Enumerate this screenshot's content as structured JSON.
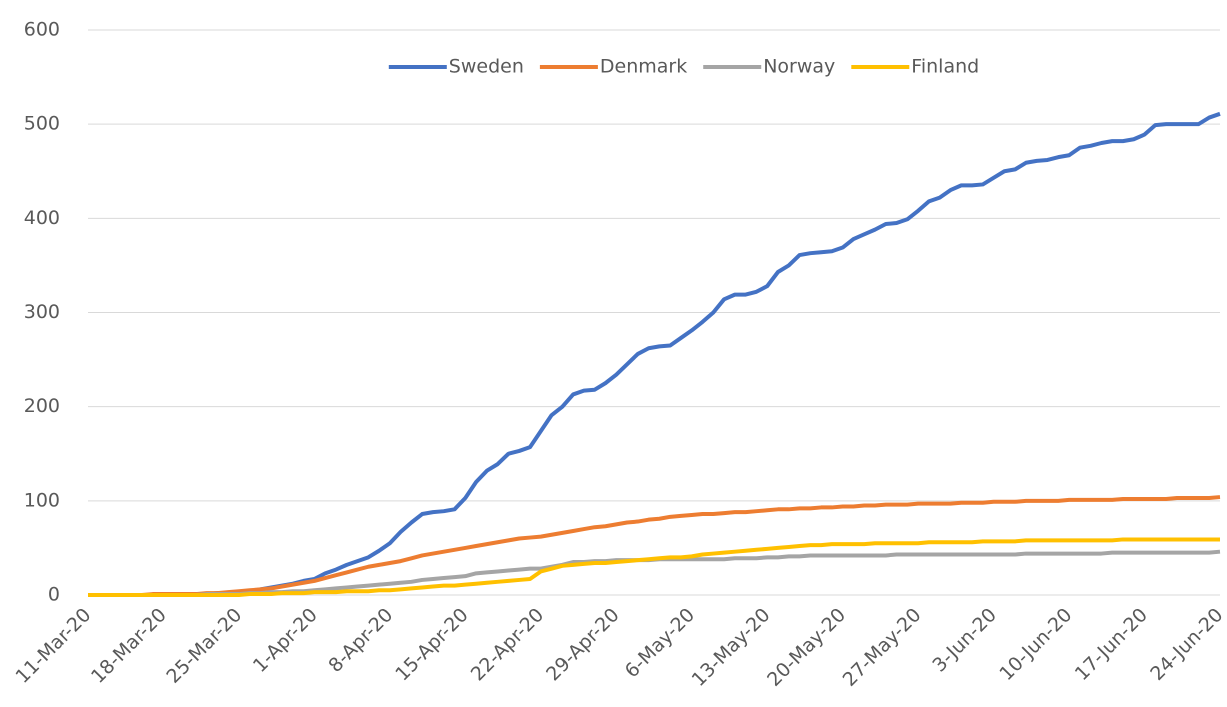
{
  "chart_data": {
    "type": "line",
    "categories": [
      "11-Mar-20",
      null,
      null,
      null,
      null,
      null,
      null,
      "18-Mar-20",
      null,
      null,
      null,
      null,
      null,
      null,
      "25-Mar-20",
      null,
      null,
      null,
      null,
      null,
      null,
      "1-Apr-20",
      null,
      null,
      null,
      null,
      null,
      null,
      "8-Apr-20",
      null,
      null,
      null,
      null,
      null,
      null,
      "15-Apr-20",
      null,
      null,
      null,
      null,
      null,
      null,
      "22-Apr-20",
      null,
      null,
      null,
      null,
      null,
      null,
      "29-Apr-20",
      null,
      null,
      null,
      null,
      null,
      null,
      "6-May-20",
      null,
      null,
      null,
      null,
      null,
      null,
      "13-May-20",
      null,
      null,
      null,
      null,
      null,
      null,
      "20-May-20",
      null,
      null,
      null,
      null,
      null,
      null,
      "27-May-20",
      null,
      null,
      null,
      null,
      null,
      null,
      "3-Jun-20",
      null,
      null,
      null,
      null,
      null,
      null,
      "10-Jun-20",
      null,
      null,
      null,
      null,
      null,
      null,
      "17-Jun-20",
      null,
      null,
      null,
      null,
      null,
      null,
      "24-Jun-20"
    ],
    "series": [
      {
        "name": "Sweden",
        "color": "#4472c4",
        "values": [
          0,
          0,
          0,
          0,
          0,
          0,
          0,
          1,
          1,
          1,
          1,
          1,
          2,
          2,
          3,
          4,
          6,
          8,
          10,
          12,
          15,
          17,
          23,
          27,
          32,
          36,
          40,
          47,
          55,
          67,
          77,
          86,
          88,
          89,
          91,
          103,
          120,
          132,
          139,
          150,
          153,
          157,
          174,
          191,
          200,
          213,
          217,
          218,
          225,
          234,
          245,
          256,
          262,
          264,
          265,
          273,
          281,
          290,
          300,
          314,
          319,
          319,
          322,
          328,
          343,
          350,
          361,
          363,
          364,
          365,
          369,
          378,
          383,
          388,
          394,
          395,
          399,
          408,
          418,
          422,
          430,
          435,
          435,
          436,
          443,
          450,
          452,
          459,
          461,
          462,
          465,
          467,
          475,
          477,
          480,
          482,
          482,
          484,
          489,
          499,
          500,
          500,
          500,
          500,
          507,
          511
        ]
      },
      {
        "name": "Denmark",
        "color": "#ed7d31",
        "values": [
          0,
          0,
          0,
          0,
          0,
          0,
          1,
          1,
          1,
          1,
          1,
          2,
          2,
          3,
          4,
          5,
          6,
          7,
          9,
          11,
          13,
          15,
          18,
          21,
          24,
          27,
          30,
          32,
          34,
          36,
          39,
          42,
          44,
          46,
          48,
          50,
          52,
          54,
          56,
          58,
          60,
          61,
          62,
          64,
          66,
          68,
          70,
          72,
          73,
          75,
          77,
          78,
          80,
          81,
          83,
          84,
          85,
          86,
          86,
          87,
          88,
          88,
          89,
          90,
          91,
          91,
          92,
          92,
          93,
          93,
          94,
          94,
          95,
          95,
          96,
          96,
          96,
          97,
          97,
          97,
          97,
          98,
          98,
          98,
          99,
          99,
          99,
          100,
          100,
          100,
          100,
          101,
          101,
          101,
          101,
          101,
          102,
          102,
          102,
          102,
          102,
          103,
          103,
          103,
          103,
          104
        ]
      },
      {
        "name": "Norway",
        "color": "#a5a5a5",
        "values": [
          0,
          0,
          0,
          0,
          0,
          0,
          0,
          0,
          0,
          0,
          0,
          1,
          1,
          1,
          1,
          2,
          2,
          3,
          3,
          4,
          4,
          5,
          6,
          7,
          8,
          9,
          10,
          11,
          12,
          13,
          14,
          16,
          17,
          18,
          19,
          20,
          23,
          24,
          25,
          26,
          27,
          28,
          28,
          30,
          32,
          35,
          35,
          36,
          36,
          37,
          37,
          37,
          37,
          38,
          38,
          38,
          38,
          38,
          38,
          38,
          39,
          39,
          39,
          40,
          40,
          41,
          41,
          42,
          42,
          42,
          42,
          42,
          42,
          42,
          42,
          43,
          43,
          43,
          43,
          43,
          43,
          43,
          43,
          43,
          43,
          43,
          43,
          44,
          44,
          44,
          44,
          44,
          44,
          44,
          44,
          45,
          45,
          45,
          45,
          45,
          45,
          45,
          45,
          45,
          45,
          46
        ]
      },
      {
        "name": "Finland",
        "color": "#ffc000",
        "values": [
          0,
          0,
          0,
          0,
          0,
          0,
          0,
          0,
          0,
          0,
          0,
          0,
          0,
          0,
          0,
          1,
          1,
          1,
          2,
          2,
          2,
          3,
          3,
          3,
          4,
          4,
          4,
          5,
          5,
          6,
          7,
          8,
          9,
          10,
          10,
          11,
          12,
          13,
          14,
          15,
          16,
          17,
          25,
          28,
          31,
          32,
          33,
          34,
          34,
          35,
          36,
          37,
          38,
          39,
          40,
          40,
          41,
          43,
          44,
          45,
          46,
          47,
          48,
          49,
          50,
          51,
          52,
          53,
          53,
          54,
          54,
          54,
          54,
          55,
          55,
          55,
          55,
          55,
          56,
          56,
          56,
          56,
          56,
          57,
          57,
          57,
          57,
          58,
          58,
          58,
          58,
          58,
          58,
          58,
          58,
          58,
          59,
          59,
          59,
          59,
          59,
          59,
          59,
          59,
          59,
          59
        ]
      }
    ],
    "ylim": [
      0,
      600
    ],
    "yticks": [
      0,
      100,
      200,
      300,
      400,
      500,
      600
    ],
    "grid": true,
    "legend": "top"
  }
}
